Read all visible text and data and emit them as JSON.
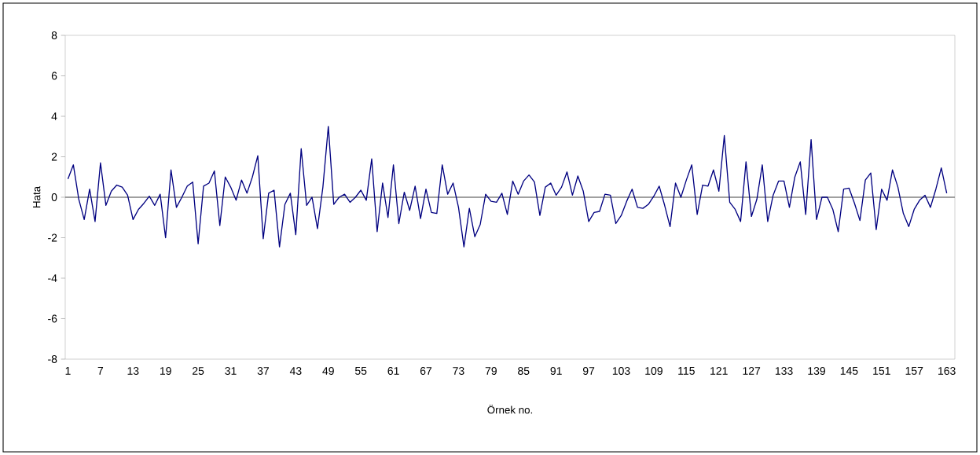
{
  "chart_data": {
    "type": "line",
    "xlabel": "Örnek no.",
    "ylabel": "Hata",
    "x": [
      1,
      2,
      3,
      4,
      5,
      6,
      7,
      8,
      9,
      10,
      11,
      12,
      13,
      14,
      15,
      16,
      17,
      18,
      19,
      20,
      21,
      22,
      23,
      24,
      25,
      26,
      27,
      28,
      29,
      30,
      31,
      32,
      33,
      34,
      35,
      36,
      37,
      38,
      39,
      40,
      41,
      42,
      43,
      44,
      45,
      46,
      47,
      48,
      49,
      50,
      51,
      52,
      53,
      54,
      55,
      56,
      57,
      58,
      59,
      60,
      61,
      62,
      63,
      64,
      65,
      66,
      67,
      68,
      69,
      70,
      71,
      72,
      73,
      74,
      75,
      76,
      77,
      78,
      79,
      80,
      81,
      82,
      83,
      84,
      85,
      86,
      87,
      88,
      89,
      90,
      91,
      92,
      93,
      94,
      95,
      96,
      97,
      98,
      99,
      100,
      101,
      102,
      103,
      104,
      105,
      106,
      107,
      108,
      109,
      110,
      111,
      112,
      113,
      114,
      115,
      116,
      117,
      118,
      119,
      120,
      121,
      122,
      123,
      124,
      125,
      126,
      127,
      128,
      129,
      130,
      131,
      132,
      133,
      134,
      135,
      136,
      137,
      138,
      139,
      140,
      141,
      142,
      143,
      144,
      145,
      146,
      147,
      148,
      149,
      150,
      151,
      152,
      153,
      154,
      155,
      156,
      157,
      158,
      159,
      160,
      161,
      162,
      163
    ],
    "series": [
      {
        "color": "#000080",
        "values": [
          0.9,
          1.6,
          -0.1,
          -1.1,
          0.4,
          -1.2,
          1.7,
          -0.4,
          0.3,
          0.6,
          0.5,
          0.1,
          -1.1,
          -0.6,
          -0.3,
          0.05,
          -0.4,
          0.15,
          -2.0,
          1.35,
          -0.5,
          0.0,
          0.55,
          0.75,
          -2.3,
          0.55,
          0.7,
          1.3,
          -1.4,
          1.0,
          0.5,
          -0.15,
          0.85,
          0.2,
          1.0,
          2.05,
          -2.05,
          0.2,
          0.35,
          -2.45,
          -0.35,
          0.2,
          -1.85,
          2.4,
          -0.4,
          0.0,
          -1.55,
          0.5,
          3.5,
          -0.35,
          0.0,
          0.15,
          -0.25,
          0.0,
          0.35,
          -0.15,
          1.9,
          -1.7,
          0.7,
          -1.0,
          1.6,
          -1.3,
          0.25,
          -0.65,
          0.55,
          -1.05,
          0.4,
          -0.75,
          -0.8,
          1.6,
          0.15,
          0.7,
          -0.5,
          -2.45,
          -0.55,
          -1.95,
          -1.35,
          0.15,
          -0.2,
          -0.25,
          0.2,
          -0.85,
          0.8,
          0.15,
          0.8,
          1.1,
          0.75,
          -0.9,
          0.5,
          0.7,
          0.1,
          0.5,
          1.25,
          0.1,
          1.05,
          0.3,
          -1.2,
          -0.75,
          -0.7,
          0.15,
          0.1,
          -1.3,
          -0.9,
          -0.2,
          0.4,
          -0.5,
          -0.55,
          -0.35,
          0.05,
          0.55,
          -0.4,
          -1.45,
          0.7,
          0.0,
          0.85,
          1.6,
          -0.85,
          0.6,
          0.55,
          1.35,
          0.3,
          3.05,
          -0.25,
          -0.6,
          -1.2,
          1.75,
          -0.95,
          -0.1,
          1.6,
          -1.2,
          0.1,
          0.8,
          0.8,
          -0.5,
          1.0,
          1.75,
          -0.85,
          2.85,
          -1.1,
          0.0,
          0.0,
          -0.6,
          -1.7,
          0.4,
          0.45,
          -0.3,
          -1.15,
          0.85,
          1.2,
          -1.6,
          0.4,
          -0.15,
          1.35,
          0.5,
          -0.8,
          -1.45,
          -0.6,
          -0.15,
          0.1,
          -0.5,
          0.4,
          1.45,
          0.2
        ]
      }
    ],
    "xlim": [
      0.5,
      164.5
    ],
    "xticks": [
      1,
      7,
      13,
      19,
      25,
      31,
      37,
      43,
      49,
      55,
      61,
      67,
      73,
      79,
      85,
      91,
      97,
      103,
      109,
      115,
      121,
      127,
      133,
      139,
      145,
      151,
      157,
      163
    ],
    "ylim": [
      -8,
      8
    ],
    "yticks": [
      -8,
      -6,
      -4,
      -2,
      0,
      2,
      4,
      6,
      8
    ],
    "ref_lines": [
      {
        "axis": "y",
        "value": 0,
        "color": "#808080"
      }
    ],
    "grid": false,
    "marker": "none",
    "line_style": "solid"
  }
}
